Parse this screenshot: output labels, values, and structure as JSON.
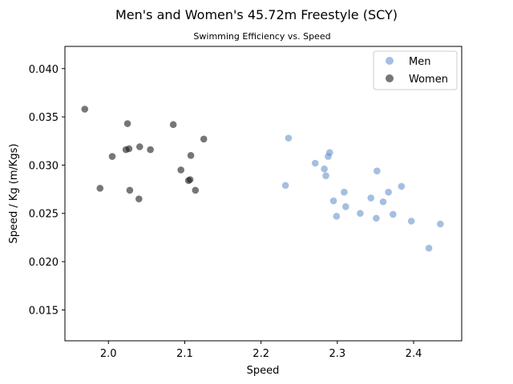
{
  "chart_data": {
    "type": "scatter",
    "title": "Men's and Women's 45.72m Freestyle (SCY)",
    "subtitle": "Swimming Efficiency vs. Speed",
    "xlabel": "Speed",
    "ylabel": "Speed / Kg (m/Kgs)",
    "xlim": [
      1.943,
      2.463
    ],
    "ylim": [
      0.0118,
      0.0423
    ],
    "xticks": [
      2.0,
      2.1,
      2.2,
      2.3,
      2.4
    ],
    "xtick_labels": [
      "2.0",
      "2.1",
      "2.2",
      "2.3",
      "2.4"
    ],
    "yticks": [
      0.015,
      0.02,
      0.025,
      0.03,
      0.035,
      0.04
    ],
    "ytick_labels": [
      "0.015",
      "0.020",
      "0.025",
      "0.030",
      "0.035",
      "0.040"
    ],
    "grid": false,
    "legend_position": "top-right",
    "series": [
      {
        "name": "Men",
        "color": "#5b8ac7",
        "points": [
          [
            2.232,
            0.0279
          ],
          [
            2.236,
            0.0328
          ],
          [
            2.271,
            0.0302
          ],
          [
            2.283,
            0.0296
          ],
          [
            2.285,
            0.0289
          ],
          [
            2.288,
            0.0309
          ],
          [
            2.29,
            0.0313
          ],
          [
            2.295,
            0.0263
          ],
          [
            2.299,
            0.0247
          ],
          [
            2.309,
            0.0272
          ],
          [
            2.311,
            0.0257
          ],
          [
            2.33,
            0.025
          ],
          [
            2.344,
            0.0266
          ],
          [
            2.351,
            0.0245
          ],
          [
            2.352,
            0.0294
          ],
          [
            2.36,
            0.0262
          ],
          [
            2.367,
            0.0272
          ],
          [
            2.373,
            0.0249
          ],
          [
            2.384,
            0.0278
          ],
          [
            2.397,
            0.0242
          ],
          [
            2.42,
            0.0214
          ],
          [
            2.435,
            0.0239
          ]
        ]
      },
      {
        "name": "Women",
        "color": "#1a1a1a",
        "points": [
          [
            1.969,
            0.0358
          ],
          [
            1.989,
            0.0276
          ],
          [
            2.005,
            0.0309
          ],
          [
            2.023,
            0.0316
          ],
          [
            2.025,
            0.0343
          ],
          [
            2.027,
            0.0317
          ],
          [
            2.028,
            0.0274
          ],
          [
            2.04,
            0.0265
          ],
          [
            2.041,
            0.0319
          ],
          [
            2.055,
            0.0316
          ],
          [
            2.085,
            0.0342
          ],
          [
            2.095,
            0.0295
          ],
          [
            2.105,
            0.0284
          ],
          [
            2.107,
            0.0285
          ],
          [
            2.108,
            0.031
          ],
          [
            2.114,
            0.0274
          ],
          [
            2.125,
            0.0327
          ]
        ]
      }
    ]
  }
}
